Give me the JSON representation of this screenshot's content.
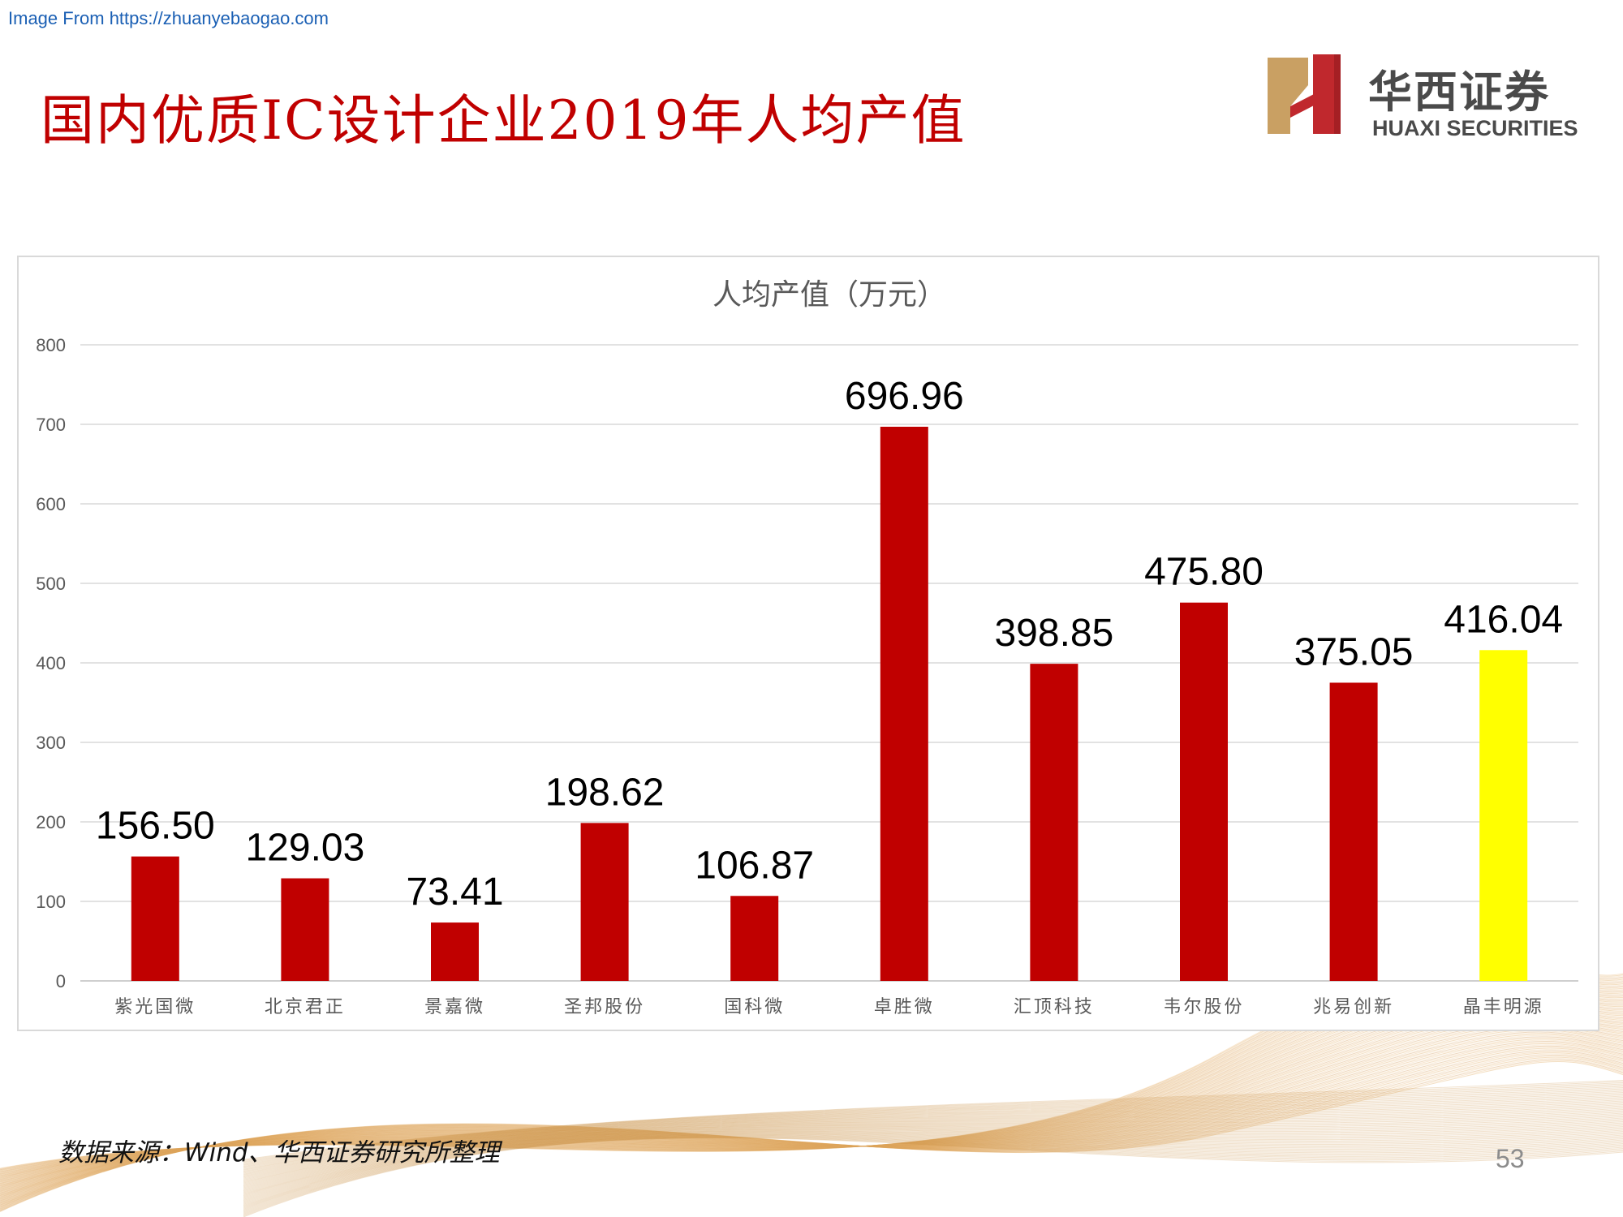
{
  "header": {
    "source_link": "Image From https://zhuanyebaogao.com",
    "title": "国内优质IC设计企业2019年人均产值"
  },
  "logo": {
    "name_cn": "华西证券",
    "name_en": "HUAXI SECURITIES",
    "colors": {
      "gold": "#c9a063",
      "red": "#c0282d"
    }
  },
  "chart_data": {
    "type": "bar",
    "title": "人均产值（万元）",
    "xlabel": "",
    "ylabel": "",
    "ylim": [
      0,
      800
    ],
    "yticks": [
      0,
      100,
      200,
      300,
      400,
      500,
      600,
      700,
      800
    ],
    "grid": true,
    "legend": "none",
    "categories": [
      "紫光国微",
      "北京君正",
      "景嘉微",
      "圣邦股份",
      "国科微",
      "卓胜微",
      "汇顶科技",
      "韦尔股份",
      "兆易创新",
      "晶丰明源"
    ],
    "values": [
      156.5,
      129.03,
      73.41,
      198.62,
      106.87,
      696.96,
      398.85,
      475.8,
      375.05,
      416.04
    ],
    "data_labels": [
      "156.50",
      "129.03",
      "73.41",
      "198.62",
      "106.87",
      "696.96",
      "398.85",
      "475.80",
      "375.05",
      "416.04"
    ],
    "bar_colors": [
      "#c00000",
      "#c00000",
      "#c00000",
      "#c00000",
      "#c00000",
      "#c00000",
      "#c00000",
      "#c00000",
      "#c00000",
      "#ffff00"
    ]
  },
  "footer": {
    "source_note": "数据来源：Wind、华西证券研究所整理",
    "page_number": "53"
  }
}
